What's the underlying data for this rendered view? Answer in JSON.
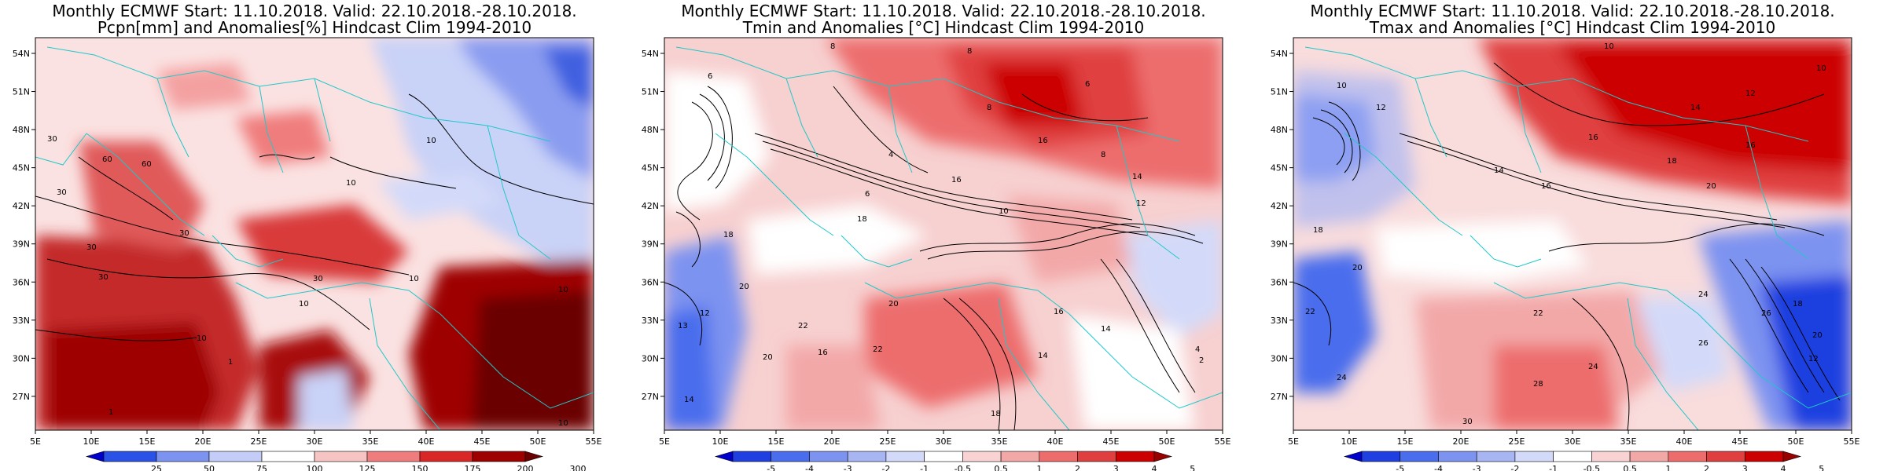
{
  "panels": [
    {
      "title_line1": "Monthly ECMWF Start: 11.10.2018. Valid: 22.10.2018.-28.10.2018.",
      "title_line2": "Pcpn[mm] and Anomalies[%] Hindcast Clim 1994-2010",
      "colorbar_labels": [
        "25",
        "50",
        "75",
        "100",
        "125",
        "150",
        "175",
        "200",
        "300"
      ],
      "colorbar_colors": [
        "#0000cc",
        "#2a52e6",
        "#7d93f0",
        "#c4cdf7",
        "#ffffff",
        "#f7c4c4",
        "#f07d7d",
        "#d92626",
        "#9e0000",
        "#6b0000"
      ],
      "contour_labels": [
        "30",
        "30",
        "60",
        "60",
        "30",
        "10",
        "30",
        "30",
        "10",
        "10",
        "10",
        "30",
        "10",
        "10",
        "1",
        "1",
        "10",
        "10"
      ]
    },
    {
      "title_line1": "Monthly ECMWF Start: 11.10.2018. Valid: 22.10.2018.-28.10.2018.",
      "title_line2": "Tmin and Anomalies [°C] Hindcast Clim 1994-2010",
      "colorbar_labels": [
        "-5",
        "-4",
        "-3",
        "-2",
        "-1",
        "-0.5",
        "0.5",
        "1",
        "2",
        "3",
        "4",
        "5"
      ],
      "colorbar_colors": [
        "#0000cc",
        "#1f3fe0",
        "#4a6ded",
        "#7d93f0",
        "#a8b5f3",
        "#d3daf9",
        "#ffffff",
        "#f9d3d3",
        "#f3a8a8",
        "#ed6d6d",
        "#e03f3f",
        "#cc0000",
        "#990000"
      ],
      "contour_labels": [
        "8",
        "6",
        "8",
        "6",
        "4",
        "6",
        "8",
        "8",
        "16",
        "16",
        "14",
        "10",
        "18",
        "18",
        "12",
        "20",
        "22",
        "20",
        "16",
        "20",
        "22",
        "16",
        "14",
        "14",
        "18",
        "13",
        "12",
        "14",
        "4",
        "2"
      ]
    },
    {
      "title_line1": "Monthly ECMWF Start: 11.10.2018. Valid: 22.10.2018.-28.10.2018.",
      "title_line2": "Tmax and Anomalies [°C] Hindcast Clim 1994-2010",
      "colorbar_labels": [
        "-5",
        "-4",
        "-3",
        "-2",
        "-1",
        "-0.5",
        "0.5",
        "1",
        "2",
        "3",
        "4",
        "5"
      ],
      "colorbar_colors": [
        "#0000cc",
        "#1f3fe0",
        "#4a6ded",
        "#7d93f0",
        "#a8b5f3",
        "#d3daf9",
        "#ffffff",
        "#f9d3d3",
        "#f3a8a8",
        "#ed6d6d",
        "#e03f3f",
        "#cc0000",
        "#990000"
      ],
      "contour_labels": [
        "10",
        "10",
        "12",
        "14",
        "16",
        "16",
        "18",
        "20",
        "16",
        "14",
        "12",
        "10",
        "18",
        "20",
        "22",
        "24",
        "24",
        "26",
        "28",
        "30",
        "24",
        "26",
        "22",
        "18",
        "20",
        "12"
      ]
    }
  ],
  "axes": {
    "x_ticks": [
      "5E",
      "10E",
      "15E",
      "20E",
      "25E",
      "30E",
      "35E",
      "40E",
      "45E",
      "50E",
      "55E"
    ],
    "y_ticks": [
      "54N",
      "51N",
      "48N",
      "45N",
      "42N",
      "39N",
      "36N",
      "33N",
      "30N",
      "27N"
    ]
  }
}
